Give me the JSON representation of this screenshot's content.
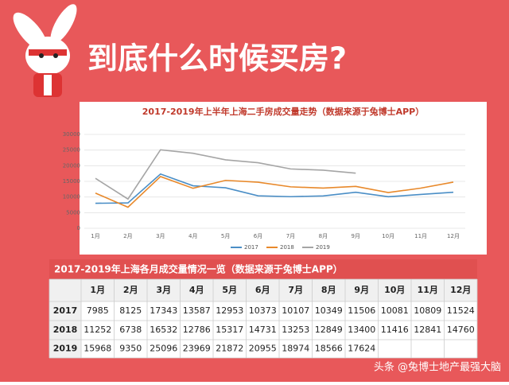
{
  "header": {
    "title": "到底什么时候买房?"
  },
  "chart_data": {
    "type": "line",
    "title": "2017-2019年上半年上海二手房成交量走势（数据来源于兔博士APP）",
    "categories": [
      "1月",
      "2月",
      "3月",
      "4月",
      "5月",
      "6月",
      "7月",
      "8月",
      "9月",
      "10月",
      "11月",
      "12月"
    ],
    "series": [
      {
        "name": "2017",
        "color": "#4a8ec6",
        "values": [
          7985,
          8125,
          17343,
          13587,
          12953,
          10373,
          10107,
          10349,
          11506,
          10081,
          10809,
          11524
        ]
      },
      {
        "name": "2018",
        "color": "#e8892b",
        "values": [
          11252,
          6738,
          16532,
          12786,
          15317,
          14731,
          13253,
          12849,
          13400,
          11416,
          12841,
          14760
        ]
      },
      {
        "name": "2019",
        "color": "#a5a5a5",
        "values": [
          15968,
          9350,
          25096,
          23969,
          21872,
          20955,
          18974,
          18566,
          17624,
          null,
          null,
          null
        ]
      }
    ],
    "ylim": [
      0,
      30000
    ],
    "yticks": [
      0,
      5000,
      10000,
      15000,
      20000,
      25000,
      30000
    ],
    "grid": true,
    "legend": "bottom"
  },
  "table": {
    "title": "2017-2019年上海各月成交量情况一览（数据来源于兔博士APP）"
  },
  "watermark": "头条 @兔博士地产最强大脑"
}
